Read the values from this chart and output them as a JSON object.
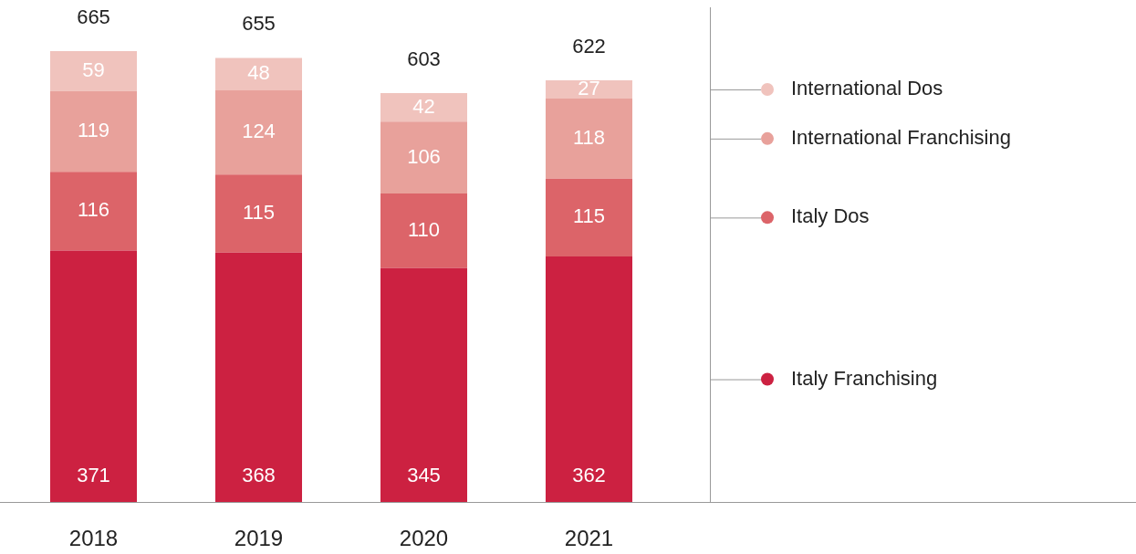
{
  "chart_data": {
    "type": "bar",
    "stacked": true,
    "data_labels": true,
    "legend": "right",
    "categories": [
      "2018",
      "2019",
      "2020",
      "2021"
    ],
    "series": [
      {
        "name": "Italy Franchising",
        "color": "#cc2141",
        "values": [
          371,
          368,
          345,
          362
        ]
      },
      {
        "name": "Italy Dos",
        "color": "#dc6469",
        "values": [
          116,
          115,
          110,
          115
        ]
      },
      {
        "name": "International Franchising",
        "color": "#e8a19b",
        "values": [
          119,
          124,
          106,
          118
        ]
      },
      {
        "name": "International Dos",
        "color": "#f0c3bd",
        "values": [
          59,
          48,
          42,
          27
        ]
      }
    ],
    "totals": [
      "665",
      "655",
      "603",
      "622"
    ]
  }
}
